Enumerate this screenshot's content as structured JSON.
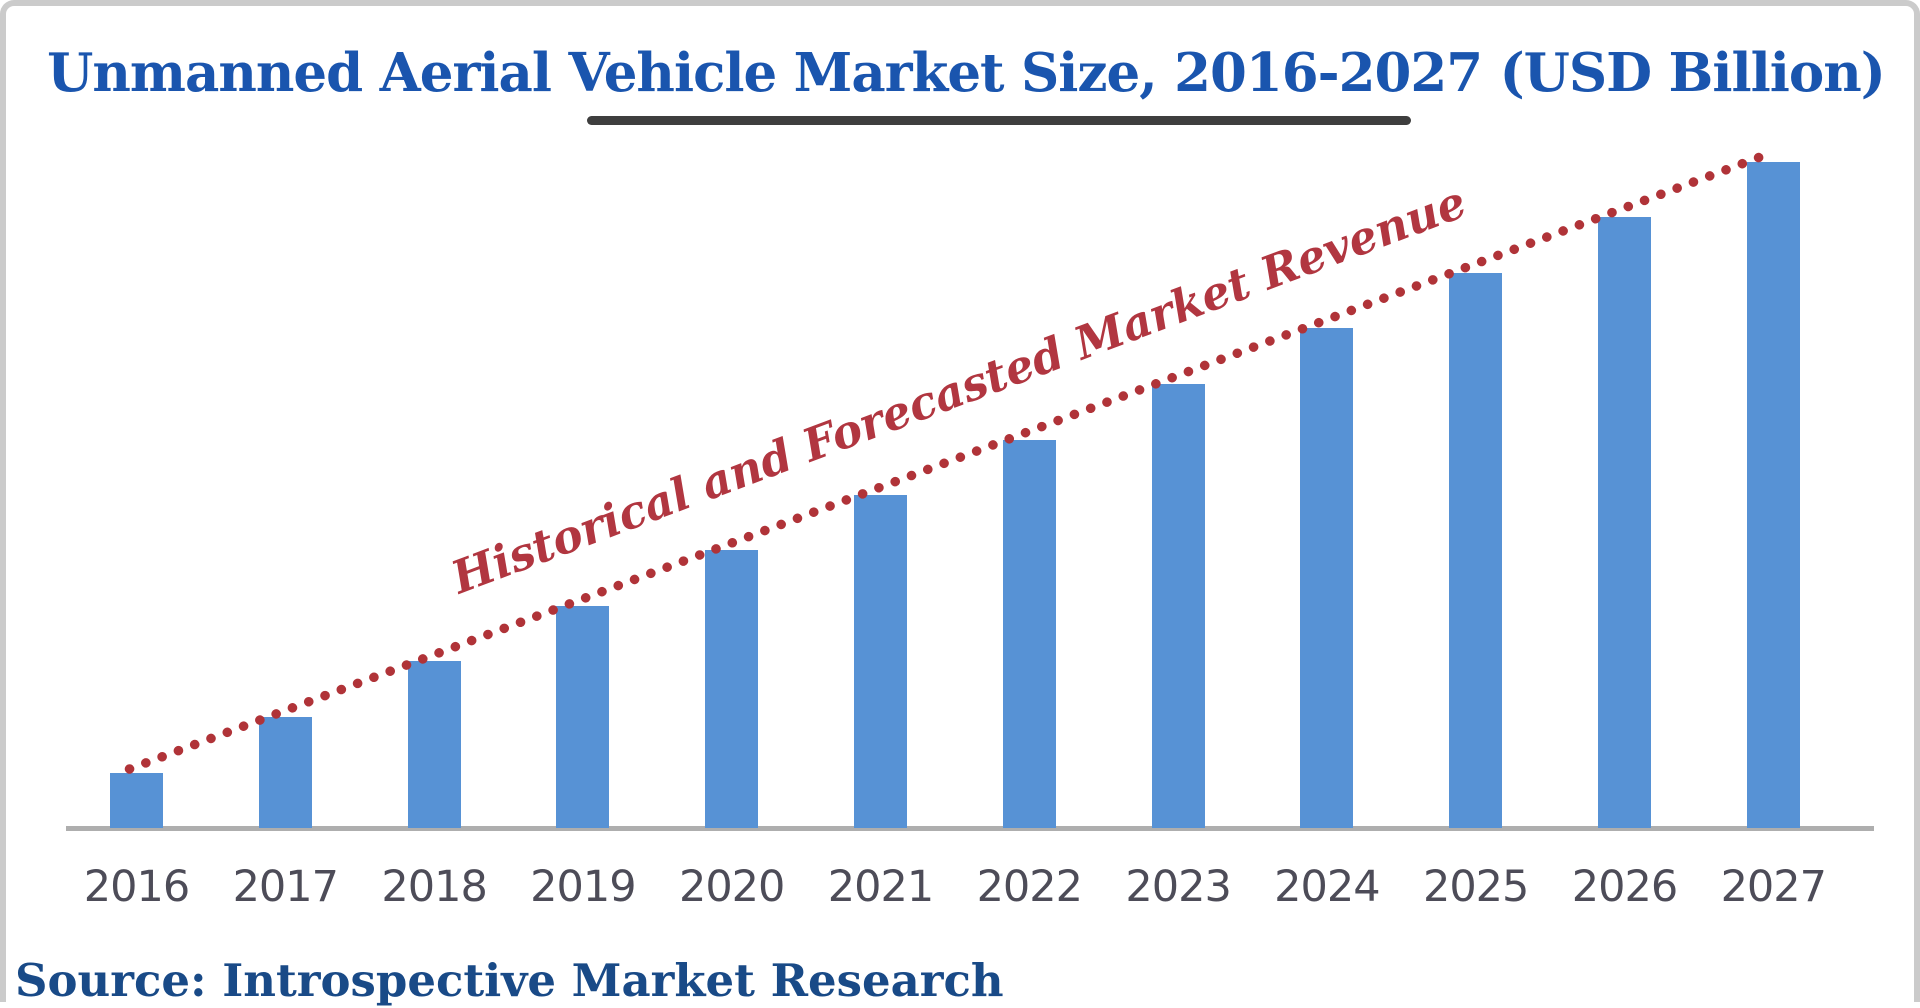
{
  "header": {
    "title": "Unmanned Aerial Vehicle Market Size, 2016-2027 (USD Billion)",
    "title_color": "#1a55ae",
    "underline_color": "#3e3e3e"
  },
  "chart_data": {
    "type": "bar",
    "title": "Unmanned Aerial Vehicle Market Size, 2016-2027 (USD Billion)",
    "categories": [
      "2016",
      "2017",
      "2018",
      "2019",
      "2020",
      "2021",
      "2022",
      "2023",
      "2024",
      "2025",
      "2026",
      "2027"
    ],
    "values_relative_pct": [
      8.3,
      16.7,
      25.0,
      33.3,
      41.7,
      50.0,
      58.3,
      66.7,
      75.0,
      83.3,
      91.7,
      100.0
    ],
    "value_axis_labeled": false,
    "gridlines": false,
    "legend_position": "none",
    "bar_color": "#5792d5",
    "axis_line_color": "#aeaeae",
    "tick_label_color": "#4d4c58",
    "trendline": {
      "style": "dotted",
      "color": "#b03338",
      "label": "Historical and Forecasted Market Revenue",
      "label_color": "#b13640"
    }
  },
  "footer": {
    "source": "Source: Introspective Market Research",
    "source_color": "#194a87"
  }
}
